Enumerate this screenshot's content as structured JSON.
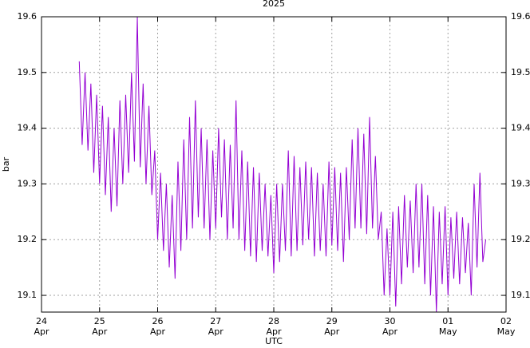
{
  "chart_data": {
    "type": "line",
    "title": "2025",
    "y_label": "bar",
    "x_label": "UTC",
    "xlim": [
      114,
      122
    ],
    "xticks": [
      {
        "value": 114,
        "label": [
          "24",
          "Apr"
        ]
      },
      {
        "value": 115,
        "label": [
          "25",
          "Apr"
        ]
      },
      {
        "value": 116,
        "label": [
          "26",
          "Apr"
        ]
      },
      {
        "value": 117,
        "label": [
          "27",
          "Apr"
        ]
      },
      {
        "value": 118,
        "label": [
          "28",
          "Apr"
        ]
      },
      {
        "value": 119,
        "label": [
          "29",
          "Apr"
        ]
      },
      {
        "value": 120,
        "label": [
          "30",
          "Apr"
        ]
      },
      {
        "value": 121,
        "label": [
          "01",
          "May"
        ]
      },
      {
        "value": 122,
        "label": [
          "02",
          "May"
        ]
      }
    ],
    "ylim": [
      19.07,
      19.6
    ],
    "yticks": [
      19.1,
      19.2,
      19.3,
      19.4,
      19.5,
      19.6
    ],
    "grid": true,
    "x": [
      114.65,
      114.7,
      114.75,
      114.8,
      114.85,
      114.9,
      114.95,
      115,
      115.05,
      115.1,
      115.15,
      115.2,
      115.25,
      115.3,
      115.35,
      115.4,
      115.45,
      115.5,
      115.55,
      115.6,
      115.65,
      115.7,
      115.75,
      115.8,
      115.85,
      115.9,
      115.95,
      116,
      116.05,
      116.1,
      116.15,
      116.2,
      116.25,
      116.3,
      116.35,
      116.4,
      116.45,
      116.5,
      116.55,
      116.6,
      116.65,
      116.7,
      116.75,
      116.8,
      116.85,
      116.9,
      116.95,
      117,
      117.05,
      117.1,
      117.15,
      117.2,
      117.25,
      117.3,
      117.35,
      117.4,
      117.45,
      117.5,
      117.55,
      117.6,
      117.65,
      117.7,
      117.75,
      117.8,
      117.85,
      117.9,
      117.95,
      118,
      118.05,
      118.1,
      118.15,
      118.2,
      118.25,
      118.3,
      118.35,
      118.4,
      118.45,
      118.5,
      118.55,
      118.6,
      118.65,
      118.7,
      118.75,
      118.8,
      118.85,
      118.9,
      118.95,
      119,
      119.05,
      119.1,
      119.15,
      119.2,
      119.25,
      119.3,
      119.35,
      119.4,
      119.45,
      119.5,
      119.55,
      119.6,
      119.65,
      119.7,
      119.75,
      119.8,
      119.85,
      119.9,
      119.95,
      120,
      120.05,
      120.1,
      120.15,
      120.2,
      120.25,
      120.3,
      120.35,
      120.4,
      120.45,
      120.5,
      120.55,
      120.6,
      120.65,
      120.7,
      120.75,
      120.8,
      120.85,
      120.9,
      120.95,
      121,
      121.05,
      121.1,
      121.15,
      121.2,
      121.25,
      121.3,
      121.35,
      121.4,
      121.45,
      121.5,
      121.55,
      121.6,
      121.65
    ],
    "series": [
      {
        "color": "#9400d3",
        "values": [
          19.52,
          19.37,
          19.5,
          19.36,
          19.48,
          19.32,
          19.46,
          19.3,
          19.44,
          19.28,
          19.42,
          19.25,
          19.4,
          19.26,
          19.45,
          19.3,
          19.46,
          19.32,
          19.5,
          19.34,
          19.6,
          19.33,
          19.48,
          19.3,
          19.44,
          19.28,
          19.36,
          19.2,
          19.32,
          19.18,
          19.3,
          19.15,
          19.28,
          19.13,
          19.34,
          19.18,
          19.38,
          19.2,
          19.42,
          19.22,
          19.45,
          19.24,
          19.4,
          19.22,
          19.38,
          19.2,
          19.36,
          19.22,
          19.4,
          19.24,
          19.38,
          19.2,
          19.37,
          19.22,
          19.45,
          19.2,
          19.36,
          19.18,
          19.34,
          19.17,
          19.33,
          19.16,
          19.32,
          19.18,
          19.3,
          19.17,
          19.28,
          19.14,
          19.3,
          19.16,
          19.3,
          19.18,
          19.36,
          19.17,
          19.35,
          19.18,
          19.33,
          19.19,
          19.34,
          19.2,
          19.33,
          19.17,
          19.32,
          19.18,
          19.3,
          19.17,
          19.34,
          19.19,
          19.33,
          19.18,
          19.32,
          19.16,
          19.33,
          19.2,
          19.38,
          19.22,
          19.4,
          19.22,
          19.39,
          19.21,
          19.42,
          19.22,
          19.35,
          19.2,
          19.25,
          19.1,
          19.22,
          19.1,
          19.25,
          19.08,
          19.26,
          19.12,
          19.28,
          19.15,
          19.27,
          19.14,
          19.3,
          19.15,
          19.3,
          19.12,
          19.28,
          19.1,
          19.26,
          19.07,
          19.25,
          19.12,
          19.26,
          19.1,
          19.24,
          19.13,
          19.25,
          19.12,
          19.24,
          19.14,
          19.23,
          19.1,
          19.3,
          19.15,
          19.32,
          19.16,
          19.2
        ]
      }
    ]
  }
}
